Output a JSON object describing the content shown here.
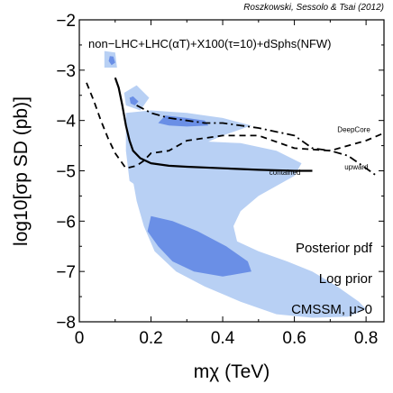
{
  "credit": "Roszkowski, Sessolo & Tsai (2012)",
  "chart_data": {
    "type": "area",
    "title": "non−LHC+LHC(αT)+X100(τ=10)+dSphs(NFW)",
    "xlabel": "mχ (TeV)",
    "ylabel": "log10[σp SD (pb)]",
    "xlim": [
      0.0,
      0.85
    ],
    "ylim": [
      -8,
      -2
    ],
    "grid": false,
    "x_ticks": [
      0,
      0.2,
      0.4,
      0.6,
      0.8
    ],
    "x_tick_labels": [
      "0",
      "0.2",
      "0.4",
      "0.6",
      "0.8"
    ],
    "y_ticks": [
      -8,
      -7,
      -6,
      -5,
      -4,
      -3,
      -2
    ],
    "y_tick_labels": [
      "−8",
      "−7",
      "−6",
      "−5",
      "−4",
      "−3",
      "−2"
    ],
    "colors": {
      "region_95": "#b8d0f4",
      "region_68": "#6a8fe6",
      "line": "#000000"
    },
    "regions": [
      {
        "level": "95%",
        "polygon": [
          [
            0.07,
            -2.62
          ],
          [
            0.1,
            -2.65
          ],
          [
            0.105,
            -2.95
          ],
          [
            0.07,
            -2.95
          ]
        ]
      },
      {
        "level": "95%",
        "polygon": [
          [
            0.125,
            -3.45
          ],
          [
            0.16,
            -3.3
          ],
          [
            0.195,
            -3.55
          ],
          [
            0.17,
            -3.8
          ],
          [
            0.13,
            -3.7
          ]
        ]
      },
      {
        "level": "95%",
        "polygon": [
          [
            0.13,
            -3.85
          ],
          [
            0.2,
            -3.8
          ],
          [
            0.3,
            -3.85
          ],
          [
            0.4,
            -3.95
          ],
          [
            0.48,
            -4.1
          ],
          [
            0.4,
            -4.3
          ],
          [
            0.35,
            -4.45
          ],
          [
            0.3,
            -4.45
          ],
          [
            0.25,
            -4.55
          ],
          [
            0.2,
            -4.7
          ],
          [
            0.18,
            -4.9
          ],
          [
            0.16,
            -5.3
          ],
          [
            0.14,
            -5.2
          ],
          [
            0.13,
            -4.6
          ]
        ]
      },
      {
        "level": "95%",
        "polygon": [
          [
            0.2,
            -4.3
          ],
          [
            0.3,
            -4.4
          ],
          [
            0.45,
            -4.45
          ],
          [
            0.55,
            -4.6
          ],
          [
            0.62,
            -4.85
          ],
          [
            0.6,
            -5.1
          ],
          [
            0.55,
            -5.3
          ],
          [
            0.5,
            -5.5
          ],
          [
            0.45,
            -5.8
          ],
          [
            0.43,
            -6.1
          ],
          [
            0.44,
            -6.4
          ],
          [
            0.5,
            -6.6
          ],
          [
            0.58,
            -6.8
          ],
          [
            0.65,
            -7.0
          ],
          [
            0.72,
            -7.3
          ],
          [
            0.78,
            -7.6
          ],
          [
            0.8,
            -7.75
          ],
          [
            0.75,
            -7.9
          ],
          [
            0.65,
            -7.92
          ],
          [
            0.55,
            -7.85
          ],
          [
            0.45,
            -7.6
          ],
          [
            0.35,
            -7.3
          ],
          [
            0.27,
            -7.0
          ],
          [
            0.21,
            -6.6
          ],
          [
            0.18,
            -6.1
          ],
          [
            0.16,
            -5.6
          ],
          [
            0.15,
            -5.2
          ],
          [
            0.14,
            -4.85
          ],
          [
            0.15,
            -4.5
          ]
        ]
      },
      {
        "level": "68%",
        "polygon": [
          [
            0.085,
            -2.72
          ],
          [
            0.095,
            -2.73
          ],
          [
            0.1,
            -2.85
          ],
          [
            0.09,
            -2.9
          ],
          [
            0.082,
            -2.82
          ]
        ]
      },
      {
        "level": "68%",
        "polygon": [
          [
            0.14,
            -3.55
          ],
          [
            0.15,
            -3.52
          ],
          [
            0.165,
            -3.62
          ],
          [
            0.155,
            -3.7
          ],
          [
            0.143,
            -3.66
          ]
        ]
      },
      {
        "level": "68%",
        "polygon": [
          [
            0.24,
            -3.9
          ],
          [
            0.3,
            -3.95
          ],
          [
            0.35,
            -4.0
          ],
          [
            0.36,
            -4.1
          ],
          [
            0.3,
            -4.12
          ],
          [
            0.25,
            -4.1
          ],
          [
            0.22,
            -4.05
          ]
        ]
      },
      {
        "level": "68%",
        "polygon": [
          [
            0.2,
            -5.9
          ],
          [
            0.26,
            -6.0
          ],
          [
            0.33,
            -6.2
          ],
          [
            0.41,
            -6.5
          ],
          [
            0.47,
            -6.8
          ],
          [
            0.48,
            -7.0
          ],
          [
            0.4,
            -7.1
          ],
          [
            0.32,
            -7.0
          ],
          [
            0.26,
            -6.8
          ],
          [
            0.22,
            -6.5
          ],
          [
            0.19,
            -6.2
          ]
        ]
      }
    ],
    "lines": [
      {
        "label": "contained",
        "style": "solid",
        "x": [
          0.1,
          0.11,
          0.12,
          0.13,
          0.14,
          0.15,
          0.17,
          0.2,
          0.25,
          0.3,
          0.4,
          0.5,
          0.6,
          0.65
        ],
        "y": [
          -3.15,
          -3.35,
          -3.7,
          -4.1,
          -4.4,
          -4.6,
          -4.75,
          -4.85,
          -4.9,
          -4.92,
          -4.95,
          -4.98,
          -5.0,
          -5.0
        ]
      },
      {
        "label": "DeepCore",
        "style": "dashed",
        "x": [
          0.02,
          0.04,
          0.06,
          0.08,
          0.1,
          0.13,
          0.16,
          0.18,
          0.2,
          0.25,
          0.3,
          0.4,
          0.5,
          0.6,
          0.7,
          0.8,
          0.85
        ],
        "y": [
          -3.25,
          -3.6,
          -4.0,
          -4.35,
          -4.65,
          -4.95,
          -4.9,
          -4.8,
          -4.65,
          -4.6,
          -4.4,
          -4.3,
          -4.3,
          -4.55,
          -4.6,
          -4.4,
          -4.25
        ]
      },
      {
        "label": "upward",
        "style": "dashdot",
        "x": [
          0.16,
          0.2,
          0.25,
          0.3,
          0.35,
          0.4,
          0.5,
          0.6,
          0.65,
          0.7,
          0.75,
          0.8,
          0.83
        ],
        "y": [
          -3.7,
          -3.85,
          -3.95,
          -4.0,
          -4.05,
          -4.05,
          -4.15,
          -4.3,
          -4.55,
          -4.6,
          -4.7,
          -4.95,
          -5.1
        ]
      }
    ],
    "line_labels": [
      {
        "text": "contained",
        "x": 0.53,
        "y": -5.08
      },
      {
        "text": "DeepCore",
        "x": 0.72,
        "y": -4.23
      },
      {
        "text": "upward",
        "x": 0.74,
        "y": -4.97
      }
    ],
    "annotations": [
      "Posterior pdf",
      "Log prior",
      "CMSSM, μ>0"
    ]
  }
}
